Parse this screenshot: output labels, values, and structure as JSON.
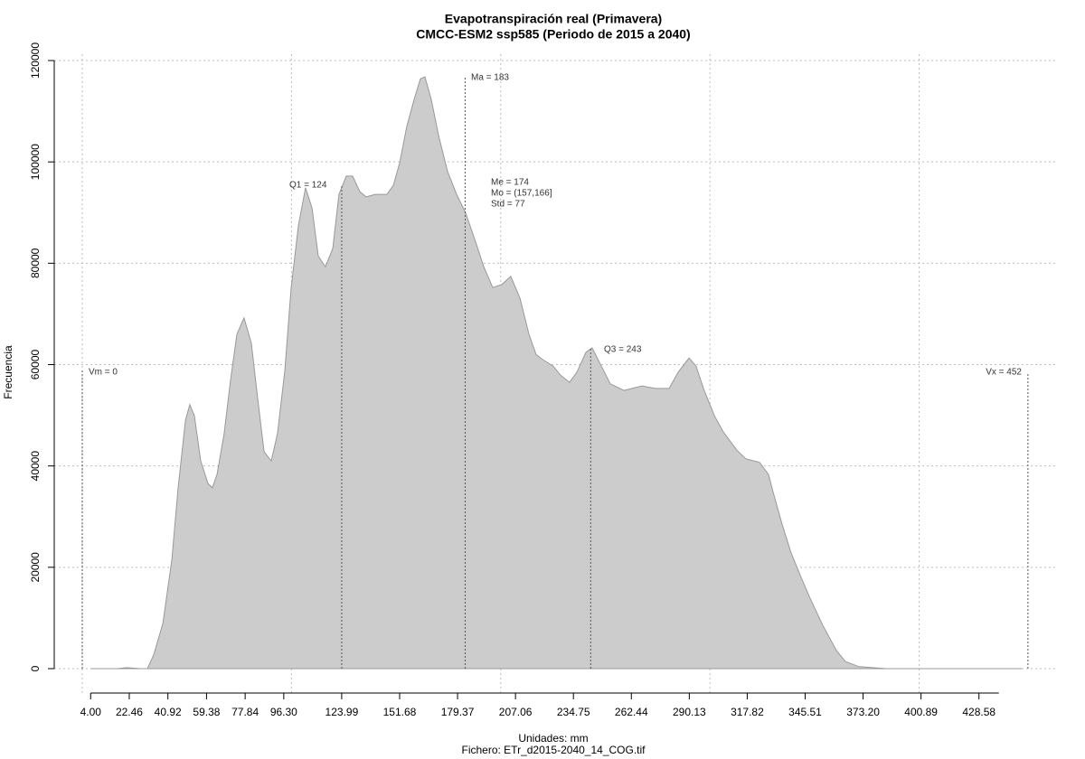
{
  "chart_data": {
    "type": "area",
    "title": "Evapotranspiración real (Primavera)",
    "subtitle": "CMCC-ESM2 ssp585 (Periodo de 2015 a 2040)",
    "x_label": "Unidades: mm",
    "caption": "Fichero: ETr_d2015-2040_14_COG.tif",
    "y_label": "Frecuencia",
    "color": "#cccccc",
    "line_color": "#999999",
    "grid": true,
    "xlim": [
      -13.4,
      466.3
    ],
    "ylim": [
      -5350,
      121250
    ],
    "xgrid": [
      0,
      100,
      200,
      300,
      400
    ],
    "yticks": [
      0,
      20000,
      40000,
      60000,
      80000,
      100000,
      120000
    ],
    "xticks": [
      {
        "value": 4,
        "label": "4.00"
      },
      22.46,
      40.92,
      59.38,
      77.84,
      {
        "value": 96.3,
        "label": "96.30"
      },
      123.99,
      151.68,
      179.37,
      207.06,
      234.75,
      262.44,
      290.13,
      317.82,
      345.51,
      {
        "value": 373.2,
        "label": "373.20"
      },
      400.89,
      428.58
    ],
    "x": [
      3.9,
      16.9,
      21.2,
      27.7,
      31.1,
      34.1,
      38.5,
      42.8,
      45.8,
      49.3,
      51.4,
      53.6,
      56.6,
      60.1,
      62.2,
      64.4,
      67.8,
      70.9,
      73.9,
      77.3,
      80.8,
      83.8,
      86.9,
      90.3,
      93.3,
      96.8,
      99.8,
      103.3,
      106.7,
      109.8,
      112.8,
      116.2,
      119.7,
      122.7,
      126.2,
      129.2,
      132.7,
      135.7,
      140.0,
      145.6,
      148.7,
      151.7,
      155.1,
      158.6,
      161.6,
      163.8,
      166.8,
      170.3,
      174.6,
      178.9,
      183.2,
      187.6,
      191.9,
      196.2,
      200.5,
      204.8,
      209.2,
      213.5,
      216.9,
      220.0,
      225.1,
      228.6,
      232.9,
      236.4,
      240.7,
      243.7,
      248.1,
      252.4,
      258.9,
      267.5,
      274.0,
      280.5,
      284.8,
      290.0,
      293.4,
      296.9,
      302.1,
      306.4,
      312.9,
      317.2,
      323.7,
      328.0,
      330.2,
      334.5,
      338.8,
      343.1,
      347.4,
      353.9,
      360.4,
      364.7,
      371.2,
      384.2,
      449.0
    ],
    "y": [
      0,
      0,
      200,
      0,
      0,
      2700,
      8900,
      21400,
      35700,
      49000,
      52100,
      49900,
      41000,
      36500,
      35700,
      38300,
      46400,
      57100,
      66000,
      69200,
      64200,
      53500,
      42800,
      41000,
      46400,
      58800,
      74900,
      87400,
      94900,
      90900,
      81400,
      79300,
      82900,
      93600,
      97200,
      97200,
      94100,
      93100,
      93600,
      93600,
      95400,
      99800,
      107000,
      112300,
      116400,
      116800,
      112300,
      105200,
      98100,
      93600,
      90000,
      84700,
      79300,
      75200,
      75800,
      77400,
      73100,
      66000,
      62000,
      61000,
      59700,
      57900,
      56500,
      58500,
      62400,
      63300,
      59700,
      56200,
      54900,
      55800,
      55300,
      55300,
      58500,
      61300,
      59700,
      55300,
      49900,
      46700,
      43100,
      41400,
      40700,
      38300,
      34800,
      28500,
      22800,
      18500,
      14300,
      8600,
      3600,
      1400,
      400,
      0,
      0
    ],
    "markers": [
      {
        "label": "Vm = 0",
        "value": 0
      },
      {
        "label": "Q1 = 124",
        "value": 124
      },
      {
        "label": "Ma = 183",
        "value": 183
      },
      {
        "label": "Q3 = 243",
        "value": 243
      },
      {
        "label": "Vx = 452",
        "value": 452
      }
    ],
    "stats": [
      "Me = 174",
      "Mo = (157,166]",
      "Std = 77"
    ]
  }
}
